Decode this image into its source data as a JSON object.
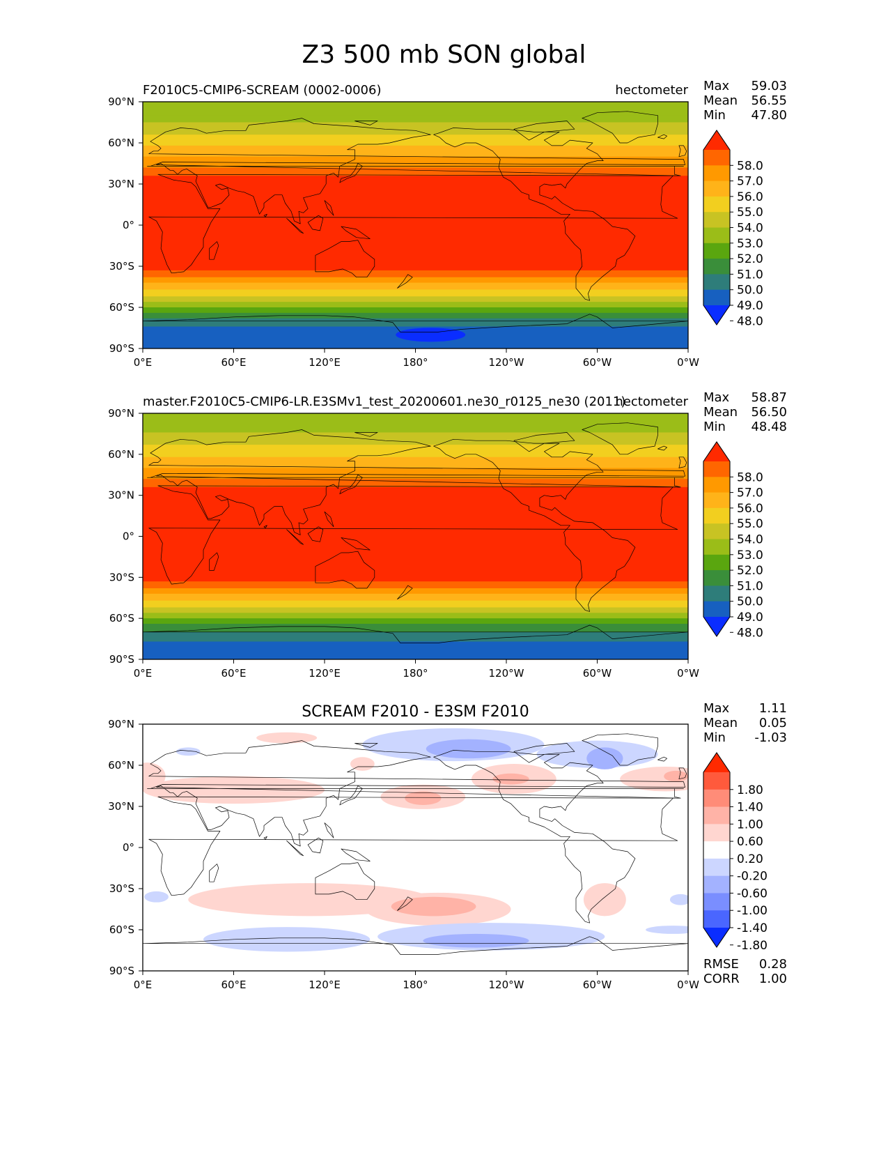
{
  "figure": {
    "title": "Z3 500 mb SON global"
  },
  "chart_data": [
    {
      "type": "heatmap",
      "title_left": "F2010C5-CMIP6-SCREAM (0002-0006)",
      "title_center": "",
      "title_right": "hectometer",
      "stats": [
        [
          "Max",
          "59.03"
        ],
        [
          "Mean",
          "56.55"
        ],
        [
          "Min",
          "47.80"
        ]
      ],
      "bottom_stats": [],
      "xticks": [
        "0°E",
        "60°E",
        "120°E",
        "180°",
        "120°W",
        "60°W",
        "0°W"
      ],
      "yticks": [
        "90°N",
        "60°N",
        "30°N",
        "0°",
        "30°S",
        "60°S",
        "90°S"
      ],
      "xlim": [
        0,
        360
      ],
      "ylim": [
        -90,
        90
      ],
      "colorbar": {
        "labels": [
          "58.0",
          "57.0",
          "56.0",
          "55.0",
          "54.0",
          "53.0",
          "52.0",
          "51.0",
          "50.0",
          "49.0",
          "48.0"
        ],
        "colors": [
          "#ff2a00",
          "#ff6600",
          "#ff9900",
          "#ffb319",
          "#f2cf1f",
          "#c8c323",
          "#9bbd18",
          "#5aa60f",
          "#3a8e3a",
          "#2e7d7a",
          "#1760c0",
          "#0a2dff"
        ],
        "extend": "both"
      },
      "field": {
        "map": "z3",
        "lat_band": [
          [
            90,
            "#9bbd18"
          ],
          [
            80,
            "#9bbd18"
          ],
          [
            75,
            "#c8c323"
          ],
          [
            66,
            "#f2cf1f"
          ],
          [
            58,
            "#ffb319"
          ],
          [
            50,
            "#ff9900"
          ],
          [
            42,
            "#ff6600"
          ],
          [
            36,
            "#ff2a00"
          ],
          [
            -28,
            "#ff2a00"
          ],
          [
            -33,
            "#ff6600"
          ],
          [
            -38,
            "#ff9900"
          ],
          [
            -42,
            "#ffb319"
          ],
          [
            -47,
            "#f2cf1f"
          ],
          [
            -52,
            "#c8c323"
          ],
          [
            -56,
            "#9bbd18"
          ],
          [
            -60,
            "#5aa60f"
          ],
          [
            -64,
            "#3a8e3a"
          ],
          [
            -68,
            "#2e7d7a"
          ],
          [
            -74,
            "#1760c0"
          ],
          [
            -90,
            "#1760c0"
          ]
        ]
      }
    },
    {
      "type": "heatmap",
      "title_left": "master.F2010C5-CMIP6-LR.E3SMv1_test_20200601.ne30_r0125_ne30 (2011)",
      "title_center": "",
      "title_right": "hectometer",
      "stats": [
        [
          "Max",
          "58.87"
        ],
        [
          "Mean",
          "56.50"
        ],
        [
          "Min",
          "48.48"
        ]
      ],
      "bottom_stats": [],
      "xticks": [
        "0°E",
        "60°E",
        "120°E",
        "180°",
        "120°W",
        "60°W",
        "0°W"
      ],
      "yticks": [
        "90°N",
        "60°N",
        "30°N",
        "0°",
        "30°S",
        "60°S",
        "90°S"
      ],
      "xlim": [
        0,
        360
      ],
      "ylim": [
        -90,
        90
      ],
      "colorbar": {
        "labels": [
          "58.0",
          "57.0",
          "56.0",
          "55.0",
          "54.0",
          "53.0",
          "52.0",
          "51.0",
          "50.0",
          "49.0",
          "48.0"
        ],
        "colors": [
          "#ff2a00",
          "#ff6600",
          "#ff9900",
          "#ffb319",
          "#f2cf1f",
          "#c8c323",
          "#9bbd18",
          "#5aa60f",
          "#3a8e3a",
          "#2e7d7a",
          "#1760c0",
          "#0a2dff"
        ],
        "extend": "both"
      },
      "field": {
        "map": "z3",
        "lat_band": [
          [
            90,
            "#9bbd18"
          ],
          [
            82,
            "#9bbd18"
          ],
          [
            76,
            "#c8c323"
          ],
          [
            67,
            "#f2cf1f"
          ],
          [
            58,
            "#ffb319"
          ],
          [
            50,
            "#ff9900"
          ],
          [
            42,
            "#ff6600"
          ],
          [
            36,
            "#ff2a00"
          ],
          [
            -28,
            "#ff2a00"
          ],
          [
            -33,
            "#ff6600"
          ],
          [
            -38,
            "#ff9900"
          ],
          [
            -42,
            "#ffb319"
          ],
          [
            -47,
            "#f2cf1f"
          ],
          [
            -52,
            "#c8c323"
          ],
          [
            -56,
            "#9bbd18"
          ],
          [
            -60,
            "#5aa60f"
          ],
          [
            -64,
            "#3a8e3a"
          ],
          [
            -70,
            "#2e7d7a"
          ],
          [
            -77,
            "#1760c0"
          ],
          [
            -90,
            "#1760c0"
          ]
        ]
      }
    },
    {
      "type": "heatmap",
      "title_left": "",
      "title_center": "SCREAM F2010 - E3SM F2010",
      "title_right": "",
      "stats": [
        [
          "Max",
          "1.11"
        ],
        [
          "Mean",
          "0.05"
        ],
        [
          "Min",
          "-1.03"
        ]
      ],
      "bottom_stats": [
        [
          "RMSE",
          "0.28"
        ],
        [
          "CORR",
          "1.00"
        ]
      ],
      "xticks": [
        "0°E",
        "60°E",
        "120°E",
        "180°",
        "120°W",
        "60°W",
        "0°W"
      ],
      "yticks": [
        "90°N",
        "60°N",
        "30°N",
        "0°",
        "30°S",
        "60°S",
        "90°S"
      ],
      "xlim": [
        0,
        360
      ],
      "ylim": [
        -90,
        90
      ],
      "colorbar": {
        "labels": [
          "1.80",
          "1.40",
          "1.00",
          "0.60",
          "0.20",
          "-0.20",
          "-0.60",
          "-1.00",
          "-1.40",
          "-1.80"
        ],
        "colors": [
          "#ff2a00",
          "#ff5a3c",
          "#ff8c78",
          "#ffb3a7",
          "#ffd6d0",
          "#ffffff",
          "#ccd6ff",
          "#a3b2ff",
          "#7a8eff",
          "#4a66ff",
          "#0a2dff"
        ],
        "extend": "both"
      },
      "field": {
        "map": "diff",
        "blobs": [
          {
            "lon": 195,
            "lat": -45,
            "rx": 48,
            "ry": 12,
            "level": 1
          },
          {
            "lon": 192,
            "lat": -43,
            "rx": 28,
            "ry": 7,
            "level": 2
          },
          {
            "lon": 185,
            "lat": 37,
            "rx": 28,
            "ry": 9,
            "level": 1
          },
          {
            "lon": 185,
            "lat": 36,
            "rx": 12,
            "ry": 5,
            "level": 2
          },
          {
            "lon": 245,
            "lat": 50,
            "rx": 28,
            "ry": 11,
            "level": 1
          },
          {
            "lon": 243,
            "lat": 50,
            "rx": 12,
            "ry": 4,
            "level": 2
          },
          {
            "lon": 345,
            "lat": 50,
            "rx": 30,
            "ry": 9,
            "level": 1
          },
          {
            "lon": 352,
            "lat": 52,
            "rx": 8,
            "ry": 4,
            "level": 2
          },
          {
            "lon": 60,
            "lat": 42,
            "rx": 60,
            "ry": 10,
            "level": 1
          },
          {
            "lon": 3,
            "lat": 52,
            "rx": 12,
            "ry": 10,
            "level": 1
          },
          {
            "lon": 110,
            "lat": -38,
            "rx": 80,
            "ry": 12,
            "level": 1
          },
          {
            "lon": 305,
            "lat": -38,
            "rx": 14,
            "ry": 12,
            "level": 1
          },
          {
            "lon": 145,
            "lat": 61,
            "rx": 8,
            "ry": 5,
            "level": 1
          },
          {
            "lon": 95,
            "lat": 80,
            "rx": 20,
            "ry": 4,
            "level": 1
          },
          {
            "lon": 230,
            "lat": -65,
            "rx": 75,
            "ry": 10,
            "level": -1
          },
          {
            "lon": 220,
            "lat": -68,
            "rx": 35,
            "ry": 5,
            "level": -2
          },
          {
            "lon": 205,
            "lat": 75,
            "rx": 60,
            "ry": 12,
            "level": -1
          },
          {
            "lon": 215,
            "lat": 72,
            "rx": 28,
            "ry": 7,
            "level": -2
          },
          {
            "lon": 95,
            "lat": -67,
            "rx": 55,
            "ry": 9,
            "level": -1
          },
          {
            "lon": 300,
            "lat": 68,
            "rx": 40,
            "ry": 10,
            "level": -1
          },
          {
            "lon": 305,
            "lat": 65,
            "rx": 12,
            "ry": 8,
            "level": -2
          },
          {
            "lon": 30,
            "lat": 70,
            "rx": 8,
            "ry": 3,
            "level": -1
          },
          {
            "lon": 9,
            "lat": -36,
            "rx": 8,
            "ry": 4,
            "level": -1
          },
          {
            "lon": 355,
            "lat": -38,
            "rx": 7,
            "ry": 4,
            "level": -1
          },
          {
            "lon": 350,
            "lat": -60,
            "rx": 18,
            "ry": 3,
            "level": -1
          }
        ]
      }
    }
  ]
}
